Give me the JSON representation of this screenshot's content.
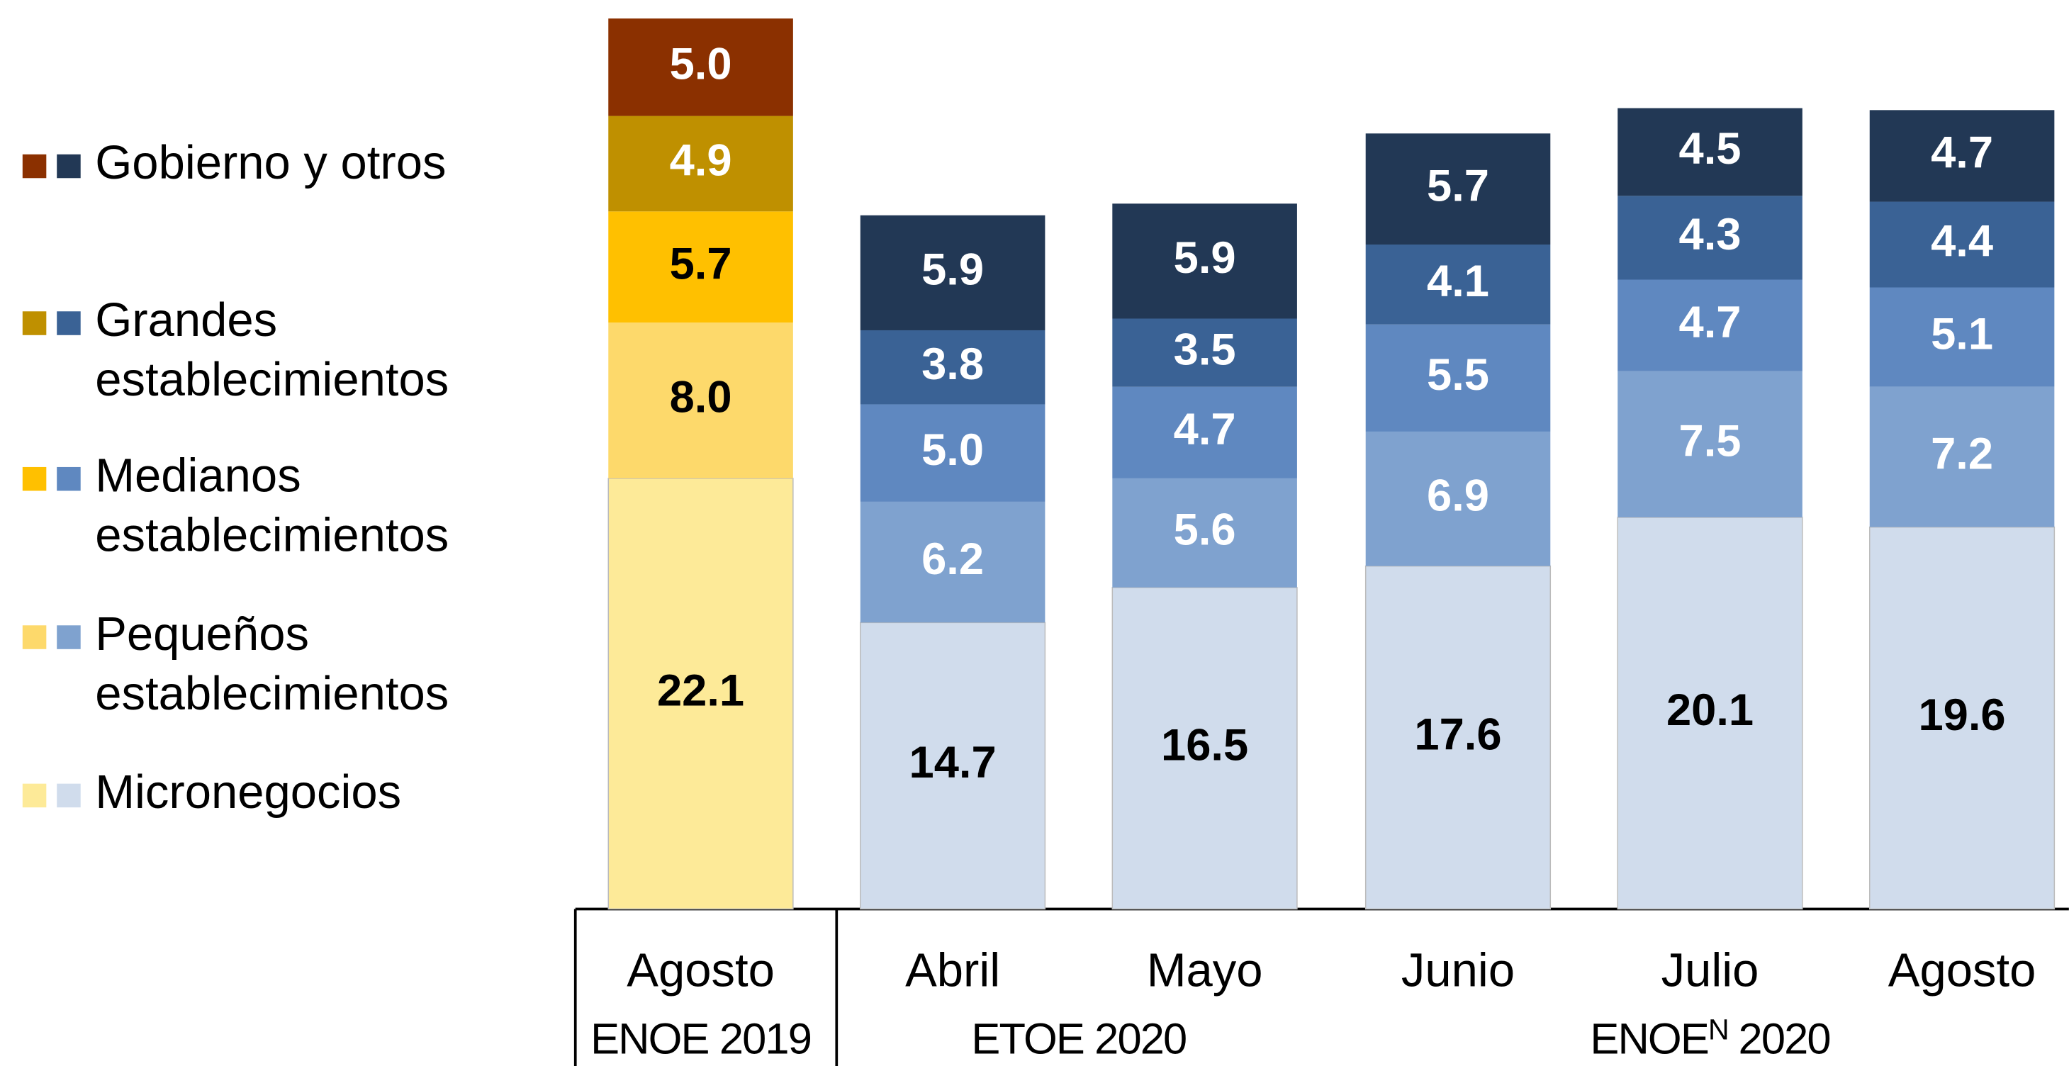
{
  "chart_data": {
    "type": "stacked_bar",
    "categories": [
      "Agosto",
      "Abril",
      "Mayo",
      "Junio",
      "Julio",
      "Agosto"
    ],
    "groups": [
      {
        "label": "ENOE 2019",
        "size": 1
      },
      {
        "label": "ETOE 2020",
        "size": 2
      },
      {
        "label": "ENOE",
        "superscript": "N",
        "suffix": "2020",
        "size": 3
      }
    ],
    "ylim": [
      0,
      46
    ],
    "series": [
      {
        "name": "Micronegocios",
        "colors": [
          "#FDEA98",
          "#D0DCEC",
          "#D0DCEC",
          "#D0DCEC",
          "#D0DCEC",
          "#D0DCEC"
        ],
        "values": [
          22.1,
          14.7,
          16.5,
          17.6,
          20.1,
          19.6
        ],
        "value_labels": [
          "22.1",
          "14.7",
          "16.5",
          "17.6",
          "20.1",
          "19.6"
        ]
      },
      {
        "name": "Pequeños establecimientos",
        "colors": [
          "#FDD96B",
          "#7FA2CF",
          "#7FA2CF",
          "#7FA2CF",
          "#7FA2CF",
          "#7FA2CF"
        ],
        "values": [
          8.0,
          6.2,
          5.6,
          6.9,
          7.5,
          7.2
        ],
        "value_labels": [
          "8.0",
          "6.2",
          "5.6",
          "6.9",
          "7.5",
          "7.2"
        ]
      },
      {
        "name": "Medianos establecimientos",
        "colors": [
          "#FFC000",
          "#5F88C0",
          "#5F88C0",
          "#5F88C0",
          "#5F88C0",
          "#5F88C0"
        ],
        "values": [
          5.7,
          5.0,
          4.7,
          5.5,
          4.7,
          5.1
        ],
        "value_labels": [
          "5.7",
          "5.0",
          "4.7",
          "5.5",
          "4.7",
          "5.1"
        ]
      },
      {
        "name": "Grandes establecimientos",
        "colors": [
          "#BF9000",
          "#3A6295",
          "#3A6295",
          "#3A6295",
          "#3A6295",
          "#3A6295"
        ],
        "values": [
          4.9,
          3.8,
          3.5,
          4.1,
          4.3,
          4.4
        ],
        "value_labels": [
          "4.9",
          "3.8",
          "3.5",
          "4.1",
          "4.3",
          "4.4"
        ]
      },
      {
        "name": "Gobierno y otros",
        "colors": [
          "#8B3000",
          "#223855",
          "#223855",
          "#223855",
          "#223855",
          "#223855"
        ],
        "values": [
          5.0,
          5.9,
          5.9,
          5.7,
          4.5,
          4.7
        ],
        "value_labels": [
          "5.0",
          "5.9",
          "5.9",
          "5.7",
          "4.5",
          "4.7"
        ]
      }
    ]
  }
}
